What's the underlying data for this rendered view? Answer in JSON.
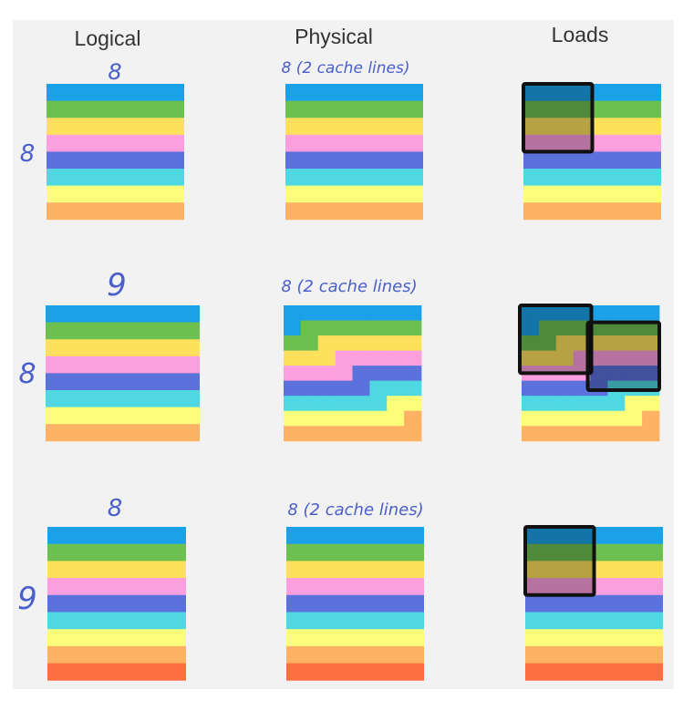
{
  "column_headers": [
    "Logical",
    "Physical",
    "Loads"
  ],
  "colors": {
    "background": "#f2f2f2",
    "label": "#4a5fc9",
    "header": "#333333",
    "load_box": "#111111",
    "blue": "#1ba1e8",
    "green": "#6cc04f",
    "yellow": "#fde15c",
    "pink": "#fc9fde",
    "indigo": "#5b71db",
    "cyan": "#4fd8e1",
    "lightyellow": "#fdfd7c",
    "orange": "#fdb264",
    "red": "#fd6f3e"
  },
  "rows": [
    {
      "logical_width_label": "8",
      "logical_height_label": "8",
      "physical_label": "8 (2 cache lines)",
      "row_colors": [
        "blue",
        "green",
        "yellow",
        "pink",
        "indigo",
        "cyan",
        "lightyellow",
        "orange"
      ],
      "cols": 8,
      "physical_width": 8,
      "load_tiles": 1
    },
    {
      "logical_width_label": "9",
      "logical_height_label": "8",
      "physical_label": "8 (2 cache lines)",
      "row_colors": [
        "blue",
        "green",
        "yellow",
        "pink",
        "indigo",
        "cyan",
        "lightyellow",
        "orange"
      ],
      "cols": 9,
      "physical_width": 8,
      "load_tiles": 2
    },
    {
      "logical_width_label": "8",
      "logical_height_label": "9",
      "physical_label": "8 (2 cache lines)",
      "row_colors": [
        "blue",
        "green",
        "yellow",
        "pink",
        "indigo",
        "cyan",
        "lightyellow",
        "orange",
        "red"
      ],
      "cols": 8,
      "physical_width": 8,
      "load_tiles": 1
    }
  ]
}
